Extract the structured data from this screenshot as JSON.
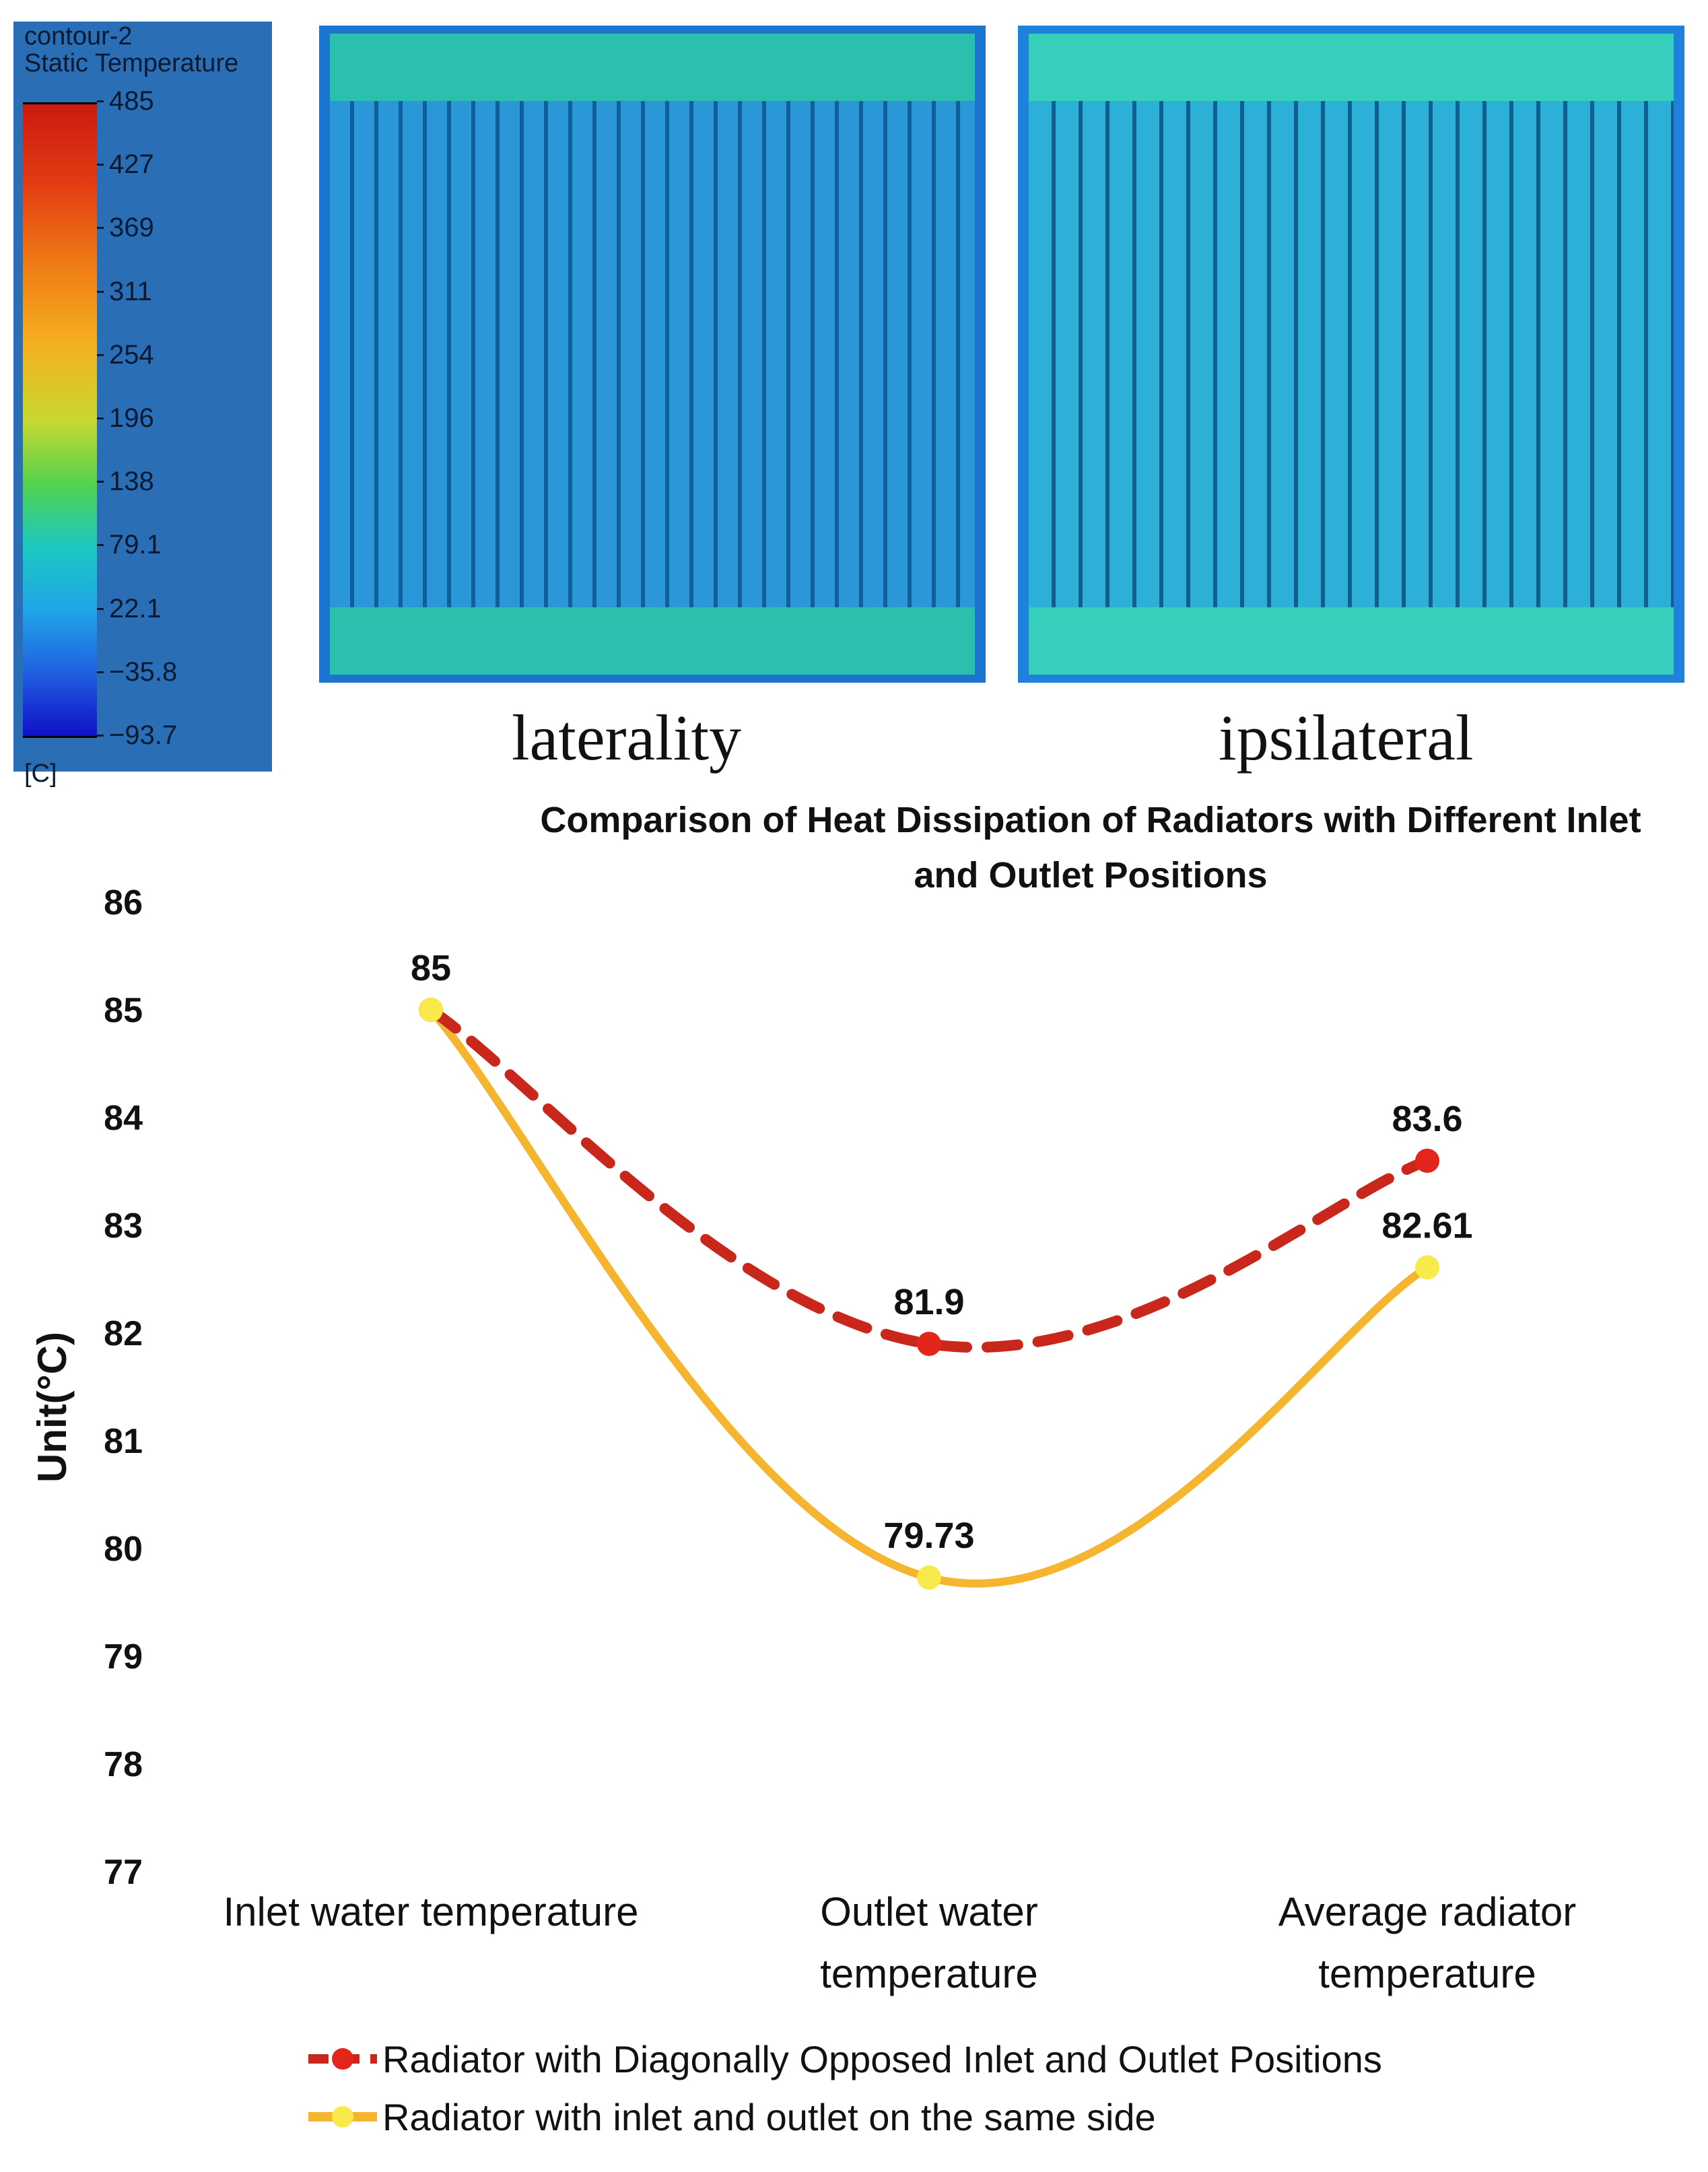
{
  "colorbar": {
    "title_line1": "contour-2",
    "title_line2": "Static Temperature",
    "labels": [
      "485",
      "427",
      "369",
      "311",
      "254",
      "196",
      "138",
      "79.1",
      "22.1",
      "−35.8",
      "−93.7"
    ],
    "unit": "[C]"
  },
  "panels": {
    "left_caption": "laterality",
    "right_caption": "ipsilateral"
  },
  "chart_data": {
    "type": "line",
    "title_line1": "Comparison of Heat Dissipation of Radiators with Different Inlet",
    "title_line2": "and Outlet Positions",
    "ylabel": "Unit(°C)",
    "ylim": [
      77,
      86
    ],
    "yticks": [
      "86",
      "85",
      "84",
      "83",
      "82",
      "81",
      "80",
      "79",
      "78",
      "77"
    ],
    "categories": [
      [
        "Inlet water temperature"
      ],
      [
        "Outlet water",
        "temperature"
      ],
      [
        "Average radiator",
        "temperature"
      ]
    ],
    "series": [
      {
        "name": "Radiator with Diagonally Opposed Inlet and Outlet Positions",
        "values": [
          85,
          81.9,
          83.6
        ],
        "labels": [
          "85",
          "81.9",
          "83.6"
        ],
        "color": "#c9261c",
        "style": "dashed"
      },
      {
        "name": "Radiator with inlet and outlet on the same side",
        "values": [
          85,
          79.73,
          82.61
        ],
        "labels": [
          "",
          "79.73",
          "82.61"
        ],
        "color": "#f5b52e",
        "style": "solid"
      }
    ]
  }
}
